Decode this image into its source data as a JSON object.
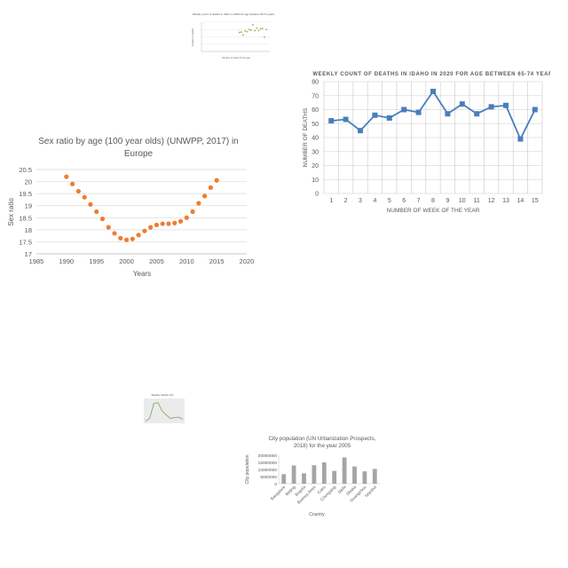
{
  "chart_data": [
    {
      "type": "scatter",
      "title": "Weekly count of deaths in Idaho in 2020 for age between 65-74 years",
      "xlabel": "Number of week of the year",
      "ylabel": "Number of deaths",
      "xlim": [
        0,
        16
      ],
      "ylim": [
        0,
        80
      ],
      "points": [
        {
          "x": 1,
          "y": 52
        },
        {
          "x": 2,
          "y": 53
        },
        {
          "x": 3,
          "y": 45
        },
        {
          "x": 4,
          "y": 56
        },
        {
          "x": 5,
          "y": 54
        },
        {
          "x": 6,
          "y": 60
        },
        {
          "x": 7,
          "y": 58
        },
        {
          "x": 8,
          "y": 73
        },
        {
          "x": 9,
          "y": 57
        },
        {
          "x": 10,
          "y": 64
        },
        {
          "x": 11,
          "y": 57
        },
        {
          "x": 12,
          "y": 62
        },
        {
          "x": 13,
          "y": 63
        },
        {
          "x": 14,
          "y": 39
        },
        {
          "x": 15,
          "y": 60
        }
      ],
      "color": "#8fb04d"
    },
    {
      "type": "line",
      "title": "WEEKLY COUNT OF DEATHS IN IDAHO IN 2020 FOR AGE BETWEEN 65-74 YEARS",
      "xlabel": "NUMBER OF WEEK OF THE YEAR",
      "ylabel": "NUMBER OF DEATHS",
      "categories": [
        "1",
        "2",
        "3",
        "4",
        "5",
        "6",
        "7",
        "8",
        "9",
        "10",
        "11",
        "12",
        "13",
        "14",
        "15"
      ],
      "values": [
        52,
        53,
        45,
        56,
        54,
        60,
        58,
        73,
        57,
        64,
        57,
        62,
        63,
        39,
        60
      ],
      "yticks": [
        "0",
        "10",
        "20",
        "30",
        "40",
        "50",
        "60",
        "70",
        "80"
      ],
      "ylim": [
        0,
        80
      ],
      "color": "#4a7ebb"
    },
    {
      "type": "scatter",
      "title": "Sex ratio by age (100 year olds) (UNWPP, 2017) in Europe",
      "xlabel": "Years",
      "ylabel": "Sex ratio",
      "xticks": [
        "1985",
        "1990",
        "1995",
        "2000",
        "2005",
        "2010",
        "2015",
        "2020"
      ],
      "yticks": [
        "17",
        "17.5",
        "18",
        "18.5",
        "19",
        "19.5",
        "20",
        "20.5"
      ],
      "xlim": [
        1985,
        2020
      ],
      "ylim": [
        17,
        20.5
      ],
      "points": [
        {
          "x": 1990,
          "y": 20.2
        },
        {
          "x": 1991,
          "y": 19.9
        },
        {
          "x": 1992,
          "y": 19.6
        },
        {
          "x": 1993,
          "y": 19.35
        },
        {
          "x": 1994,
          "y": 19.05
        },
        {
          "x": 1995,
          "y": 18.75
        },
        {
          "x": 1996,
          "y": 18.45
        },
        {
          "x": 1997,
          "y": 18.1
        },
        {
          "x": 1998,
          "y": 17.85
        },
        {
          "x": 1999,
          "y": 17.65
        },
        {
          "x": 2000,
          "y": 17.58
        },
        {
          "x": 2001,
          "y": 17.62
        },
        {
          "x": 2002,
          "y": 17.78
        },
        {
          "x": 2003,
          "y": 17.95
        },
        {
          "x": 2004,
          "y": 18.1
        },
        {
          "x": 2005,
          "y": 18.2
        },
        {
          "x": 2006,
          "y": 18.25
        },
        {
          "x": 2007,
          "y": 18.25
        },
        {
          "x": 2008,
          "y": 18.28
        },
        {
          "x": 2009,
          "y": 18.35
        },
        {
          "x": 2010,
          "y": 18.5
        },
        {
          "x": 2011,
          "y": 18.75
        },
        {
          "x": 2012,
          "y": 19.1
        },
        {
          "x": 2013,
          "y": 19.4
        },
        {
          "x": 2014,
          "y": 19.75
        },
        {
          "x": 2015,
          "y": 20.05
        }
      ],
      "color": "#ed7d31"
    },
    {
      "type": "line",
      "title": "Weekly deaths (%)",
      "values": [
        5,
        12,
        48,
        50,
        30,
        20,
        12,
        14,
        15,
        10
      ],
      "ylim": [
        0,
        60
      ],
      "color": "#7aa35a",
      "background": "#ebebeb"
    },
    {
      "type": "bar",
      "title": "City population (UN Urbanization Prospects, 2018) for the year 2005",
      "xlabel": "Country",
      "ylabel": "City population",
      "categories": [
        "Bangalore",
        "Beijing",
        "Bogota",
        "Buenos Aires",
        "Cairo",
        "Chongqing",
        "Delhi",
        "Dhaka",
        "Guangzhou",
        "Istanbul"
      ],
      "values": [
        6700000,
        12800000,
        7300000,
        13000000,
        15000000,
        9000000,
        18500000,
        12100000,
        8700000,
        10400000
      ],
      "yticks": [
        "0",
        "5000000",
        "10000000",
        "15000000",
        "20000000"
      ],
      "ylim": [
        0,
        20000000
      ],
      "color": "#a5a5a5"
    }
  ]
}
